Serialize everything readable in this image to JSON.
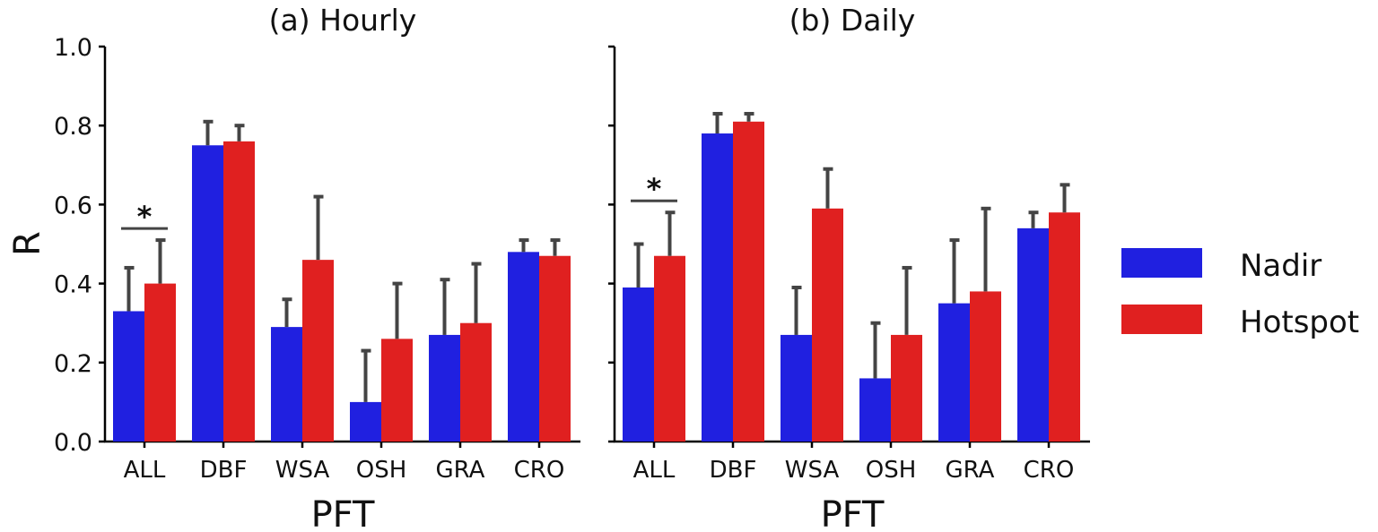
{
  "chart_data": [
    {
      "type": "bar",
      "title": "(a) Hourly",
      "xlabel": "PFT",
      "ylabel": "R",
      "ylim": [
        0,
        1.0
      ],
      "yticks": [
        "0.0",
        "0.2",
        "0.4",
        "0.6",
        "0.8",
        "1.0"
      ],
      "categories": [
        "ALL",
        "DBF",
        "WSA",
        "OSH",
        "GRA",
        "CRO"
      ],
      "series": [
        {
          "name": "Nadir",
          "color": "#2020e0",
          "values": [
            0.33,
            0.75,
            0.29,
            0.1,
            0.27,
            0.48
          ],
          "error_upper": [
            0.44,
            0.81,
            0.36,
            0.23,
            0.41,
            0.51
          ]
        },
        {
          "name": "Hotspot",
          "color": "#e02020",
          "values": [
            0.4,
            0.76,
            0.46,
            0.26,
            0.3,
            0.47
          ],
          "error_upper": [
            0.51,
            0.8,
            0.62,
            0.4,
            0.45,
            0.51
          ]
        }
      ],
      "annotations": [
        {
          "category": "ALL",
          "text": "*"
        }
      ]
    },
    {
      "type": "bar",
      "title": "(b) Daily",
      "xlabel": "PFT",
      "ylabel": "",
      "ylim": [
        0,
        1.0
      ],
      "categories": [
        "ALL",
        "DBF",
        "WSA",
        "OSH",
        "GRA",
        "CRO"
      ],
      "series": [
        {
          "name": "Nadir",
          "color": "#2020e0",
          "values": [
            0.39,
            0.78,
            0.27,
            0.16,
            0.35,
            0.54
          ],
          "error_upper": [
            0.5,
            0.83,
            0.39,
            0.3,
            0.51,
            0.58
          ]
        },
        {
          "name": "Hotspot",
          "color": "#e02020",
          "values": [
            0.47,
            0.81,
            0.59,
            0.27,
            0.38,
            0.58
          ],
          "error_upper": [
            0.58,
            0.83,
            0.69,
            0.44,
            0.59,
            0.65
          ]
        }
      ],
      "annotations": [
        {
          "category": "ALL",
          "text": "*"
        }
      ]
    }
  ],
  "legend": {
    "position": "right",
    "items": [
      "Nadir",
      "Hotspot"
    ]
  }
}
